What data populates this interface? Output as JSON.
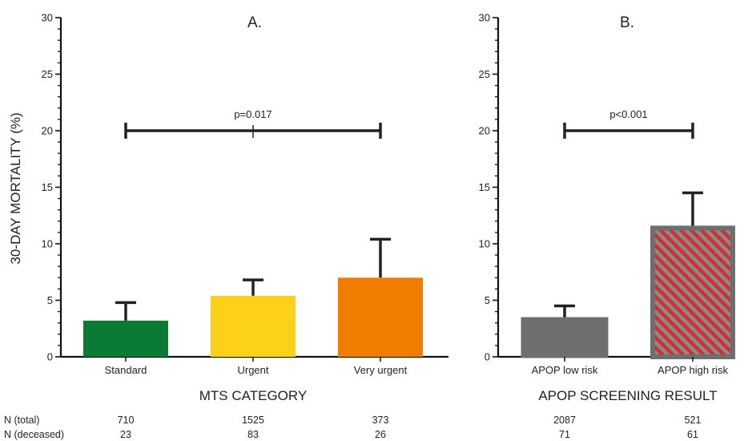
{
  "chart_data": [
    {
      "type": "bar",
      "panel": "A.",
      "title": "A.",
      "xlabel": "MTS CATEGORY",
      "ylabel": "30-DAY MORTALITY (%)",
      "ylim": [
        0,
        30
      ],
      "yticks": [
        0,
        5,
        10,
        15,
        20,
        25,
        30
      ],
      "categories": [
        "Standard",
        "Urgent",
        "Very urgent"
      ],
      "values": [
        3.2,
        5.4,
        7.0
      ],
      "error_upper": [
        4.8,
        6.8,
        10.4
      ],
      "colors": [
        "#0a7a35",
        "#fdd11a",
        "#f07d00"
      ],
      "significance": {
        "label": "p=0.017",
        "y": 20,
        "from": 0,
        "to": 2
      },
      "n_total": [
        "710",
        "1525",
        "373"
      ],
      "n_deceased": [
        "23",
        "83",
        "26"
      ]
    },
    {
      "type": "bar",
      "panel": "B.",
      "title": "B.",
      "xlabel": "APOP SCREENING RESULT",
      "ylabel": "",
      "ylim": [
        0,
        30
      ],
      "yticks": [
        0,
        5,
        10,
        15,
        20,
        25,
        30
      ],
      "categories": [
        "APOP low risk",
        "APOP high risk"
      ],
      "values": [
        3.4,
        11.6
      ],
      "error_upper": [
        4.5,
        14.5
      ],
      "colors": [
        "#6e6e6e",
        "#d32f2f"
      ],
      "patterns": [
        "solid",
        "hatched"
      ],
      "significance": {
        "label": "p<0.001",
        "y": 20,
        "from": 0,
        "to": 1
      },
      "n_total": [
        "2087",
        "521"
      ],
      "n_deceased": [
        "71",
        "61"
      ]
    }
  ],
  "n_labels": {
    "total": "N (total)",
    "deceased": "N (deceased)"
  }
}
